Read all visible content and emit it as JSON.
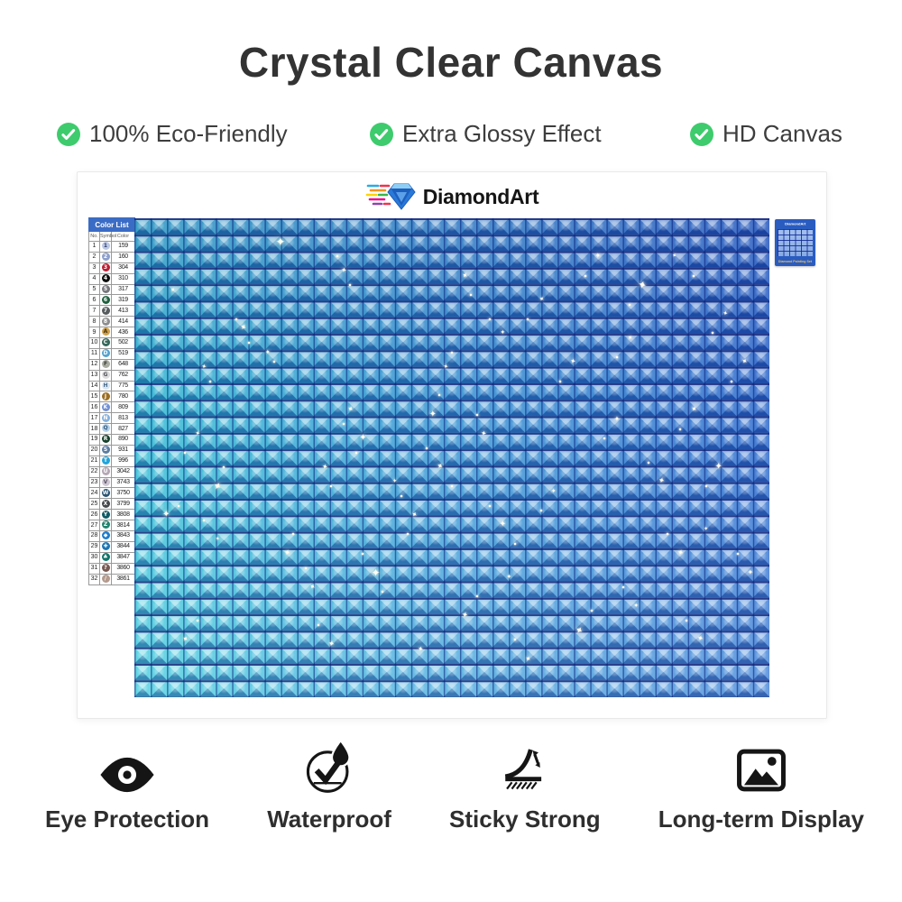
{
  "title": "Crystal Clear Canvas",
  "accent_green": "#3ecb6d",
  "top_features": [
    {
      "label": "100% Eco-Friendly"
    },
    {
      "label": "Extra Glossy Effect"
    },
    {
      "label": "HD Canvas"
    }
  ],
  "brand": {
    "name": "DiamondArt"
  },
  "color_list": {
    "title": "Color List",
    "headers": {
      "no": "No.",
      "symbol": "Symbol",
      "color": "Color"
    },
    "rows": [
      {
        "no": "1",
        "symbol": "1",
        "code": "159",
        "bg": "#bcc8e4",
        "fg": "#33406e"
      },
      {
        "no": "2",
        "symbol": "2",
        "code": "160",
        "bg": "#8da0cc",
        "fg": "#ffffff"
      },
      {
        "no": "3",
        "symbol": "3",
        "code": "304",
        "bg": "#bb1f33",
        "fg": "#ffffff"
      },
      {
        "no": "4",
        "symbol": "4",
        "code": "310",
        "bg": "#0c0c0c",
        "fg": "#ffffff"
      },
      {
        "no": "5",
        "symbol": "5",
        "code": "317",
        "bg": "#77777c",
        "fg": "#ffffff"
      },
      {
        "no": "6",
        "symbol": "6",
        "code": "319",
        "bg": "#20603f",
        "fg": "#ffffff"
      },
      {
        "no": "7",
        "symbol": "7",
        "code": "413",
        "bg": "#575b5e",
        "fg": "#ffffff"
      },
      {
        "no": "8",
        "symbol": "8",
        "code": "414",
        "bg": "#8e8e90",
        "fg": "#ffffff"
      },
      {
        "no": "9",
        "symbol": "A",
        "code": "436",
        "bg": "#cfa049",
        "fg": "#4a3410"
      },
      {
        "no": "10",
        "symbol": "C",
        "code": "502",
        "bg": "#36695c",
        "fg": "#ffffff"
      },
      {
        "no": "11",
        "symbol": "D",
        "code": "519",
        "bg": "#56a3cf",
        "fg": "#ffffff"
      },
      {
        "no": "12",
        "symbol": "F",
        "code": "648",
        "bg": "#a9aca1",
        "fg": "#3c4038"
      },
      {
        "no": "13",
        "symbol": "G",
        "code": "762",
        "bg": "#dcdcde",
        "fg": "#55565a"
      },
      {
        "no": "14",
        "symbol": "H",
        "code": "775",
        "bg": "#d9e7f4",
        "fg": "#4a6a88"
      },
      {
        "no": "15",
        "symbol": "J",
        "code": "780",
        "bg": "#9c6f22",
        "fg": "#ffffff"
      },
      {
        "no": "16",
        "symbol": "K",
        "code": "809",
        "bg": "#7291d4",
        "fg": "#ffffff"
      },
      {
        "no": "17",
        "symbol": "N",
        "code": "813",
        "bg": "#86b2de",
        "fg": "#ffffff"
      },
      {
        "no": "18",
        "symbol": "Q",
        "code": "827",
        "bg": "#b3d2ec",
        "fg": "#3a5d80"
      },
      {
        "no": "19",
        "symbol": "R",
        "code": "890",
        "bg": "#17412b",
        "fg": "#ffffff"
      },
      {
        "no": "20",
        "symbol": "S",
        "code": "931",
        "bg": "#5d7da0",
        "fg": "#ffffff"
      },
      {
        "no": "21",
        "symbol": "T",
        "code": "996",
        "bg": "#21a5dc",
        "fg": "#ffffff"
      },
      {
        "no": "22",
        "symbol": "U",
        "code": "3042",
        "bg": "#b5a8b5",
        "fg": "#ffffff"
      },
      {
        "no": "23",
        "symbol": "V",
        "code": "3743",
        "bg": "#cfc6d3",
        "fg": "#5c5464"
      },
      {
        "no": "24",
        "symbol": "W",
        "code": "3750",
        "bg": "#2a5372",
        "fg": "#ffffff"
      },
      {
        "no": "25",
        "symbol": "X",
        "code": "3799",
        "bg": "#46484d",
        "fg": "#ffffff"
      },
      {
        "no": "26",
        "symbol": "Y",
        "code": "3808",
        "bg": "#0f5a66",
        "fg": "#ffffff"
      },
      {
        "no": "27",
        "symbol": "Z",
        "code": "3814",
        "bg": "#23836f",
        "fg": "#ffffff"
      },
      {
        "no": "28",
        "symbol": "◆",
        "code": "3843",
        "bg": "#1e7ccb",
        "fg": "#ffffff"
      },
      {
        "no": "29",
        "symbol": "✚",
        "code": "3844",
        "bg": "#1d76b4",
        "fg": "#ffffff"
      },
      {
        "no": "30",
        "symbol": "♣",
        "code": "3847",
        "bg": "#12766c",
        "fg": "#ffffff"
      },
      {
        "no": "31",
        "symbol": "?",
        "code": "3860",
        "bg": "#775952",
        "fg": "#ffffff"
      },
      {
        "no": "32",
        "symbol": "∕",
        "code": "3861",
        "bg": "#b49a8c",
        "fg": "#ffffff"
      }
    ]
  },
  "package_thumbnail": {
    "brand": "DiamondArt",
    "caption": "Diamond Painting Set"
  },
  "bottom_features": [
    {
      "label": "Eye Protection",
      "icon": "eye-icon"
    },
    {
      "label": "Waterproof",
      "icon": "waterproof-icon"
    },
    {
      "label": "Sticky Strong",
      "icon": "sticky-strong-icon"
    },
    {
      "label": "Long-term Display",
      "icon": "long-term-display-icon"
    }
  ]
}
